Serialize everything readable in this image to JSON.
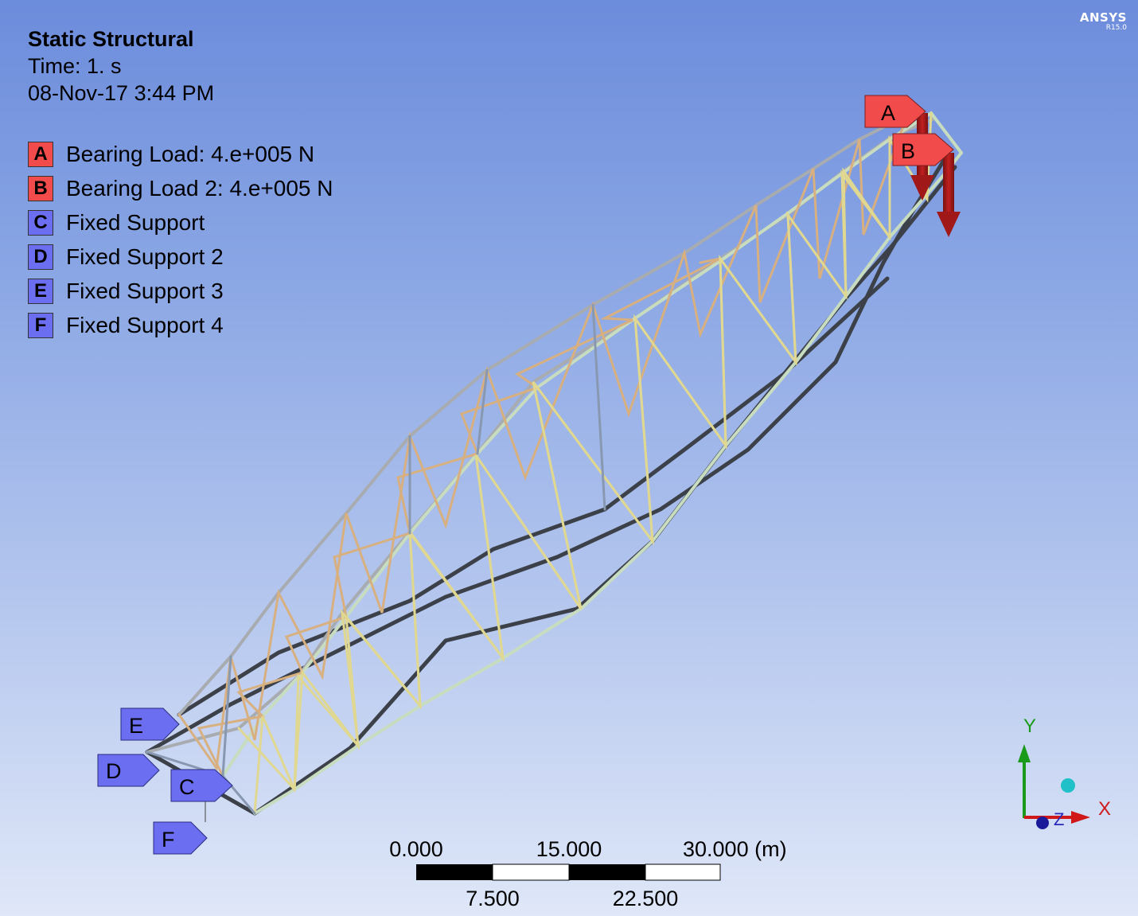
{
  "header": {
    "title": "Static Structural",
    "time": "Time: 1. s",
    "date": "08-Nov-17 3:44 PM"
  },
  "branding": {
    "name": "ANSYS",
    "version": "R15.0"
  },
  "legend": [
    {
      "key": "A",
      "label": "Bearing Load: 4.e+005 N",
      "color": "#f24b4b"
    },
    {
      "key": "B",
      "label": "Bearing Load 2: 4.e+005 N",
      "color": "#f24b4b"
    },
    {
      "key": "C",
      "label": "Fixed Support",
      "color": "#6b6ef0"
    },
    {
      "key": "D",
      "label": "Fixed Support 2",
      "color": "#6b6ef0"
    },
    {
      "key": "E",
      "label": "Fixed Support 3",
      "color": "#6b6ef0"
    },
    {
      "key": "F",
      "label": "Fixed Support 4",
      "color": "#6b6ef0"
    }
  ],
  "model_tags": {
    "A": "A",
    "B": "B",
    "C": "C",
    "D": "D",
    "E": "E",
    "F": "F"
  },
  "scale_bar": {
    "top_labels": [
      "0.000",
      "15.000",
      "30.000 (m)"
    ],
    "bottom_labels": [
      "7.500",
      "22.500"
    ]
  },
  "triad": {
    "x": "X",
    "y": "Y",
    "z": "Z"
  },
  "icons": {
    "load_arrow": "down-arrow-icon",
    "triad": "axis-triad-icon",
    "iso_ball": "isometric-view-ball-icon"
  }
}
